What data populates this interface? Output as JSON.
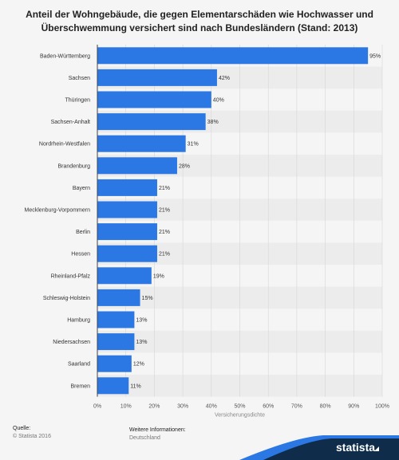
{
  "header": {
    "title_line1": "Anteil der Wohngebäude, die gegen Elementarschäden wie Hochwasser und",
    "title_line2": "Überschwemmung versichert sind nach Bundesländern (Stand: 2013)"
  },
  "footer": {
    "source_label": "Quelle:",
    "source_value": "© Statista 2016",
    "info_label": "Weitere Informationen:",
    "info_value": "Deutschland",
    "brand": "statista"
  },
  "colors": {
    "bar": "#2b78e4",
    "band": "#ececec",
    "grid": "#d6d6d6",
    "brand_dark": "#0f2d4a",
    "brand_blue": "#2b78e4"
  },
  "chart_data": {
    "type": "bar",
    "orientation": "horizontal",
    "title": "Anteil der Wohngebäude, die gegen Elementarschäden wie Hochwasser und Überschwemmung versichert sind nach Bundesländern (Stand: 2013)",
    "xlabel": "Versicherungsdichte",
    "ylabel": "",
    "xlim": [
      0,
      100
    ],
    "xticks": [
      "0%",
      "10%",
      "20%",
      "30%",
      "40%",
      "50%",
      "60%",
      "70%",
      "80%",
      "90%",
      "100%"
    ],
    "categories": [
      "Baden-Württemberg",
      "Sachsen",
      "Thüringen",
      "Sachsen-Anhalt",
      "Nordrhein-Westfalen",
      "Brandenburg",
      "Bayern",
      "Mecklenburg-Vorpommern",
      "Berlin",
      "Hessen",
      "Rheinland-Pfalz",
      "Schleswig-Holstein",
      "Hamburg",
      "Niedersachsen",
      "Saarland",
      "Bremen"
    ],
    "values": [
      95,
      42,
      40,
      38,
      31,
      28,
      21,
      21,
      21,
      21,
      19,
      15,
      13,
      13,
      12,
      11
    ],
    "value_labels": [
      "95%",
      "42%",
      "40%",
      "38%",
      "31%",
      "28%",
      "21%",
      "21%",
      "21%",
      "21%",
      "19%",
      "15%",
      "13%",
      "13%",
      "12%",
      "11%"
    ],
    "grid": true,
    "legend": "none"
  }
}
